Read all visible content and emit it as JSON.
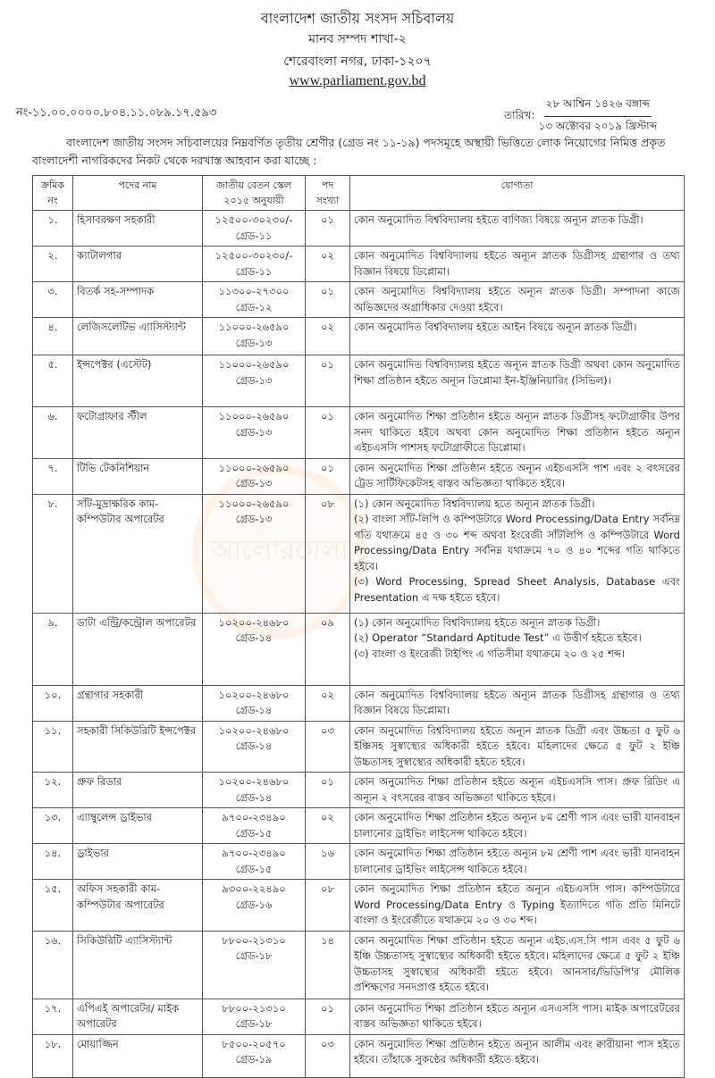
{
  "header": {
    "org": "বাংলাদেশ জাতীয় সংসদ সচিবালয়",
    "branch": "মানব সম্পদ শাখা-২",
    "address": "শেরেবাংলা নগর, ঢাকা-১২০৭",
    "website": "www.parliament.gov.bd"
  },
  "memo_no": "নং-১১.০০.০০০০.৮০৪.১১.০৮৯.১৭.৫৯৩",
  "date": {
    "label": "তারিখ:",
    "bangla": "২৮ আশ্বিন ১৪২৬ বঙ্গাব্দ",
    "english": "১৩ অক্টোবর ২০১৯ খ্রিস্টাব্দ"
  },
  "intro": "বাংলাদেশ জাতীয় সংসদ সচিবালয়ের নিম্নবর্ণিত তৃতীয় শ্রেণীর (গ্রেড নং ১১-১৯) পদসমূহে অস্থায়ী ভিত্তিতে লোক নিয়োগের নিমিত্ত প্রকৃত বাংলাদেশী নাগরিকদের নিকট থেকে দরখাস্ত আহবান করা যাচ্ছে :",
  "watermark": "আলোরমেলা",
  "table": {
    "headers": [
      "ক্রমিক নং",
      "পদের নাম",
      "জাতীয় বেতন স্কেল ২০১৫ অনুযায়ী",
      "পদ সংখ্যা",
      "যোগ্যতা"
    ],
    "rows": [
      {
        "sl": "১.",
        "post": "হিসাবরক্ষণ সহকারী",
        "scale": "১২৫০০-৩০২৩০/-",
        "grade": "গ্রেড-১১",
        "count": "০১",
        "qual": [
          "কোন অনুমোদিত বিশ্ববিদ্যালয় হইতে বাণিজ্য বিষয়ে অন্যূন স্নাতক ডিগ্রী।"
        ]
      },
      {
        "sl": "২.",
        "post": "ক্যাটালগার",
        "scale": "১২৫০০-৩০২৩০/-",
        "grade": "গ্রেড-১১",
        "count": "০২",
        "qual": [
          "কোন অনুমোদিত বিশ্ববিদ্যালয় হইতে অন্যূন স্নাতক ডিগ্রীসহ গ্রন্থাগার ও তথ্য বিজ্ঞান বিষয়ে ডিপ্লোমা।"
        ]
      },
      {
        "sl": "৩.",
        "post": "বিতর্ক সহ-সম্পাদক",
        "scale": "১১৩০০-২৭৩০০",
        "grade": "গ্রেড-১২",
        "count": "০১",
        "qual": [
          "কোন অনুমোদিত বিশ্ববিদ্যালয় হইতে অন্যূন স্নাতক ডিগ্রী। সম্পাদনা কাজে অভিজ্ঞদের অগ্রাধিকার দেওয়া হইবে।"
        ]
      },
      {
        "sl": "৪.",
        "post": "লেজিসলেটিভ এ্যাসিস্ট্যান্ট",
        "scale": "১১০০০-২৬৫৯০",
        "grade": "গ্রেড-১৩",
        "count": "০২",
        "qual": [
          "কোন অনুমোদিত বিশ্ববিদ্যালয় হইতে আইন বিষয়ে অন্যূন স্নাতক ডিগ্রী।"
        ]
      },
      {
        "sl": "৫.",
        "post": "ইন্সপেক্টর (এস্টেট)",
        "scale": "১১০০০-২৬৫৯০",
        "grade": "গ্রেড-১৩",
        "count": "০১",
        "qual": [
          "কোন অনুমোদিত বিশ্ববিদ্যালয় হইতে অন্যূন স্নাতক ডিগ্রী অথবা কোন অনুমোদিত শিক্ষা প্রতিষ্ঠান হইতে অন্যূন ডিপ্লোমা ইন-ইঞ্জিনিয়ারিং (সিভিল)।"
        ]
      },
      {
        "sl": "৬.",
        "post": "ফটোগ্রাফার স্টীল",
        "scale": "১১০০০-২৬৫৯০",
        "grade": "গ্রেড-১৩",
        "count": "০১",
        "qual": [
          "কোন অনুমোদিত শিক্ষা প্রতিষ্ঠান হইতে অন্যূন স্নাতক ডিগ্রীসহ ফটোগ্রাফীর উপর সনদ থাকিতে হইবে অথবা কোন অনুমোদিত শিক্ষা প্রতিষ্ঠান হইতে অন্যূন এইচএসসি পাশসহ ফটোগ্রাফীতে ডিপ্লোমা।"
        ]
      },
      {
        "sl": "৭.",
        "post": "টিভি টেকনিশিয়ান",
        "scale": "১১০০০-২৬৫৯০",
        "grade": "গ্রেড-১৩",
        "count": "০১",
        "qual": [
          "কোন অনুমোদিত শিক্ষা প্রতিষ্ঠান হইতে অন্যূন এইচএসসি পাশ এবং ২ বৎসরের ট্রেড সার্টিফিকেটসহ বাস্তব অভিজ্ঞতা থাকিতে হইবে।"
        ]
      },
      {
        "sl": "৮.",
        "post": "সাঁট-মুদ্রাক্ষরিক কাম-কম্পিউটার অপারেটর",
        "scale": "১১০০০-২৬৫৯০",
        "grade": "গ্রেড-১৩",
        "count": "০৮",
        "qual": [
          "(১) কোন অনুমোদিত বিশ্ববিদ্যালয় হতে অন্যূন স্নাতক ডিগ্রী।",
          "(২) বাংলা সাঁট-লিপি ও কম্পিউটারে Word Processing/Data Entry সর্বনিম্ন গতি যথাক্রমে ৪৫ ও ৩০ শব্দ অথবা ইংরেজী সাঁটলিপি ও কম্পিউটারে Word Processing/Data Entry সর্বনিম্ন যথাক্রমে ৭০ ও ৪০ শব্দের গতি থাকিতে হইবে।",
          "(৩) Word Processing, Spread Sheet Analysis, Database এবং Presentation এ দক্ষ হইতে হইবে।"
        ]
      },
      {
        "sl": "৯.",
        "post": "ডাটা এন্ট্রি/কন্ট্রোল অপারেটর",
        "scale": "১০২০০-২৪৬৮০",
        "grade": "গ্রেড-১৪",
        "count": "০৯",
        "qual": [
          "(১) কোন অনুমোদিত বিশ্ববিদ্যালয় হইতে অন্যূন স্নাতক ডিগ্রী।",
          "(২) Operator “Standard Aptitude Test” এ উত্তীর্ণ হইতে হইবে।",
          "(৩) বাংলা ও ইংরেজী টাইপিং এ গতিসীমা যথাক্রমে ২০ ও ২৫ শব্দ।"
        ]
      },
      {
        "sl": "১০.",
        "post": "গ্রন্থাগার সহকারী",
        "scale": "১০২০০-২৪৬৮০",
        "grade": "গ্রেড-১৪",
        "count": "০২",
        "qual": [
          "কোন অনুমোদিত বিশ্ববিদ্যালয় হইতে অন্যূন স্নাতক ডিগ্রীসহ গ্রন্থাগার ও তথ্য বিজ্ঞান বিষয়ে ডিপ্লোমা।"
        ]
      },
      {
        "sl": "১১.",
        "post": "সহকারী সিকিউরিটি ইন্সপেক্টর",
        "scale": "১০২০০-২৪৬৮০",
        "grade": "গ্রেড-১৪",
        "count": "০৩",
        "qual": [
          "কোন অনুমোদিত বিশ্ববিদ্যালয় হইতে অন্যূন স্নাতক ডিগ্রী এবং উচ্চতা ৫ ফুট ৬ ইঞ্চিসহ সুস্বাস্থ্যের অধিকারী হইতে হইবে। মহিলাদের ক্ষেত্রে ৫ ফুট ২ ইঞ্চি উচ্চতাসহ সুস্বাস্থ্যের অধিকারী হইতে হইবে।"
        ]
      },
      {
        "sl": "১২.",
        "post": "প্রুফ রিডার",
        "scale": "১০২০০-২৪৬৮০",
        "grade": "গ্রেড-১৪",
        "count": "০১",
        "qual": [
          "কোন অনুমোদিত শিক্ষা প্রতিষ্ঠান হইতে অন্যূন এইচএসসি পাস। প্রুফ রিডিং এ অন্যূন ২ বৎসরের বাস্তব অভিজ্ঞতা থাকিতে হইবে।"
        ]
      },
      {
        "sl": "১৩.",
        "post": "এ্যাম্বুলেন্স ড্রাইভার",
        "scale": "৯৭০০-২৩৪৯০",
        "grade": "গ্রেড-১৫",
        "count": "০২",
        "qual": [
          "কোন অনুমোদিত শিক্ষা প্রতিষ্ঠান হইতে অন্যূন ৮ম শ্রেণী পাস এবং ভারী যানবাহন চালানোর ড্রাইভিং লাইসেন্স থাকিতে হইবে।"
        ]
      },
      {
        "sl": "১৪.",
        "post": "ড্রাইভার",
        "scale": "৯৭০০-২৩৪৯০",
        "grade": "গ্রেড-১৫",
        "count": "১৬",
        "qual": [
          "কোন অনুমোদিত শিক্ষা প্রতিষ্ঠান হইতে অন্যূন ৮ম শ্রেণী পাশ এবং ভারী যানবাহন চালানোর ড্রাইভিং লাইসেন্স থাকিতে হইবে।"
        ]
      },
      {
        "sl": "১৫.",
        "post": "অফিস সহকারী কাম-কম্পিউটার অপারেটর",
        "scale": "৯৩০০-২২৪৯০",
        "grade": "গ্রেড-১৬",
        "count": "০৮",
        "qual": [
          "কোন অনুমোদিত শিক্ষা প্রতিষ্ঠান হইতে অন্যূন এইচএসসি পাস। কম্পিউটারে Word Processing/Data Entry ও Typing ইত্যাদিতে গতি প্রতি মিনিটে বাংলা ও ইংরেজীতে যথাক্রমে ২০ ও ৩০ শব্দ।"
        ]
      },
      {
        "sl": "১৬.",
        "post": "সিকিউরিটি এ্যাসিস্ট্যান্ট",
        "scale": "৮৮০০-২১৩১০",
        "grade": "গ্রেড-১৮",
        "count": "১৪",
        "qual": [
          "কোন অনুমোদিত শিক্ষা প্রতিষ্ঠান হইতে অন্যূন এইচ.এস.সি পাস এবং ৫ ফুট ৬ ইঞ্চি উচ্চতাসহ সুস্বাস্থ্যের অধিকারী হইতে হইবে। মহিলাদের ক্ষেত্রে ৫ ফুট ২ ইঞ্চি উচ্চতাসহ সুস্বাস্থ্যের অধিকারী হইতে হইবে। আনসার/ভিডিপি'র মৌলিক প্রশিক্ষণের সনদপ্রাপ্ত হইতে হইবে।"
        ]
      },
      {
        "sl": "১৭.",
        "post": "এপিএই অপারেটর/ মাইক অপারেটর",
        "scale": "৮৮০০-২১৩১০",
        "grade": "গ্রেড-১৮",
        "count": "০১",
        "qual": [
          "কোন অনুমোদিত শিক্ষা প্রতিষ্ঠান হইতে অন্যূন এসএসসি পাস। মাইক অপারেটরের বাস্তব অভিজ্ঞতা থাকিতে হইবে।"
        ]
      },
      {
        "sl": "১৮.",
        "post": "মোয়াজ্জিন",
        "scale": "৮৫০০-২০৫৭০",
        "grade": "গ্রেড-১৯",
        "count": "০৩",
        "qual": [
          "কোন অনুমোদিত শিক্ষা প্রতিষ্ঠান হইতে অন্যূন আলীম এবং ক্বারীয়ানা পাস হইতে হইবে। তাঁহাকে সুকণ্ঠের অধিকারী হইতে হইবে।"
        ]
      }
    ]
  }
}
